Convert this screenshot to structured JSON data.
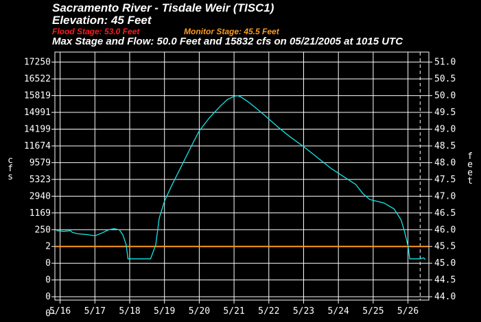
{
  "header": {
    "title": "Sacramento River - Tisdale Weir (TISC1)",
    "elevation": "Elevation: 45 Feet",
    "flood_stage": "Flood Stage: 53.0 Feet",
    "monitor_stage": "Monitor Stage: 45.5 Feet",
    "max_line": "Max Stage and Flow: 50.0 Feet and 15832 cfs on 05/21/2005 at 1015 UTC"
  },
  "colors": {
    "background": "#000000",
    "grid": "#ffffff",
    "series": "#19e6e6",
    "flood": "#ff1a1a",
    "monitor": "#ff9a1f"
  },
  "chart_data": {
    "type": "line",
    "title": "Sacramento River - Tisdale Weir (TISC1)",
    "left_axis_label": "cfs",
    "right_axis_label": "feet",
    "left_tick_labels": [
      "17250",
      "16522",
      "15819",
      "14991",
      "14199",
      "11674",
      "9579",
      "5323",
      "2940",
      "1169",
      "250",
      "2",
      "0",
      "0",
      "0",
      "0"
    ],
    "right_ticks": [
      51.0,
      50.5,
      50.0,
      49.5,
      49.0,
      48.5,
      48.0,
      47.5,
      47.0,
      46.5,
      46.0,
      45.5,
      45.0,
      44.5,
      44.0
    ],
    "right_tick_labels": [
      "51.0",
      "50.5",
      "50.0",
      "49.5",
      "49.0",
      "48.5",
      "48.0",
      "47.5",
      "47.0",
      "46.5",
      "46.0",
      "45.5",
      "45.0",
      "44.5",
      "44.0"
    ],
    "ylim_feet": [
      43.9,
      51.3
    ],
    "x_tick_labels": [
      "5/16",
      "5/17",
      "5/18",
      "5/19",
      "5/20",
      "5/21",
      "5/22",
      "5/23",
      "5/24",
      "5/25",
      "5/26"
    ],
    "xlim_days": [
      15.85,
      26.6
    ],
    "monitor_stage_feet": 45.5,
    "now_marker_day": 26.35,
    "grid": true,
    "series": [
      {
        "unit": "feet",
        "x": [
          15.9,
          16.1,
          16.3,
          16.35,
          16.5,
          16.8,
          17.0,
          17.2,
          17.4,
          17.55,
          17.7,
          17.8,
          17.9,
          17.95,
          18.3,
          18.5,
          18.6,
          18.75,
          18.85,
          19.0,
          19.2,
          19.5,
          19.8,
          20.0,
          20.3,
          20.6,
          20.8,
          21.0,
          21.1,
          21.2,
          21.4,
          21.7,
          22.0,
          22.3,
          22.6,
          23.0,
          23.4,
          23.8,
          24.2,
          24.5,
          24.7,
          24.9,
          25.1,
          25.3,
          25.6,
          25.8,
          25.9,
          26.0,
          26.05,
          26.2,
          26.35,
          26.45,
          26.5
        ],
        "y": [
          45.97,
          45.95,
          45.97,
          45.92,
          45.88,
          45.85,
          45.82,
          45.9,
          46.0,
          46.03,
          46.0,
          45.85,
          45.55,
          45.13,
          45.13,
          45.13,
          45.13,
          45.55,
          46.35,
          46.85,
          47.3,
          47.92,
          48.55,
          48.95,
          49.35,
          49.68,
          49.88,
          49.98,
          50.0,
          49.96,
          49.82,
          49.57,
          49.3,
          49.03,
          48.78,
          48.48,
          48.15,
          47.82,
          47.55,
          47.35,
          47.08,
          46.9,
          46.85,
          46.8,
          46.62,
          46.3,
          45.95,
          45.52,
          45.13,
          45.13,
          45.13,
          45.16,
          45.11
        ]
      }
    ]
  }
}
